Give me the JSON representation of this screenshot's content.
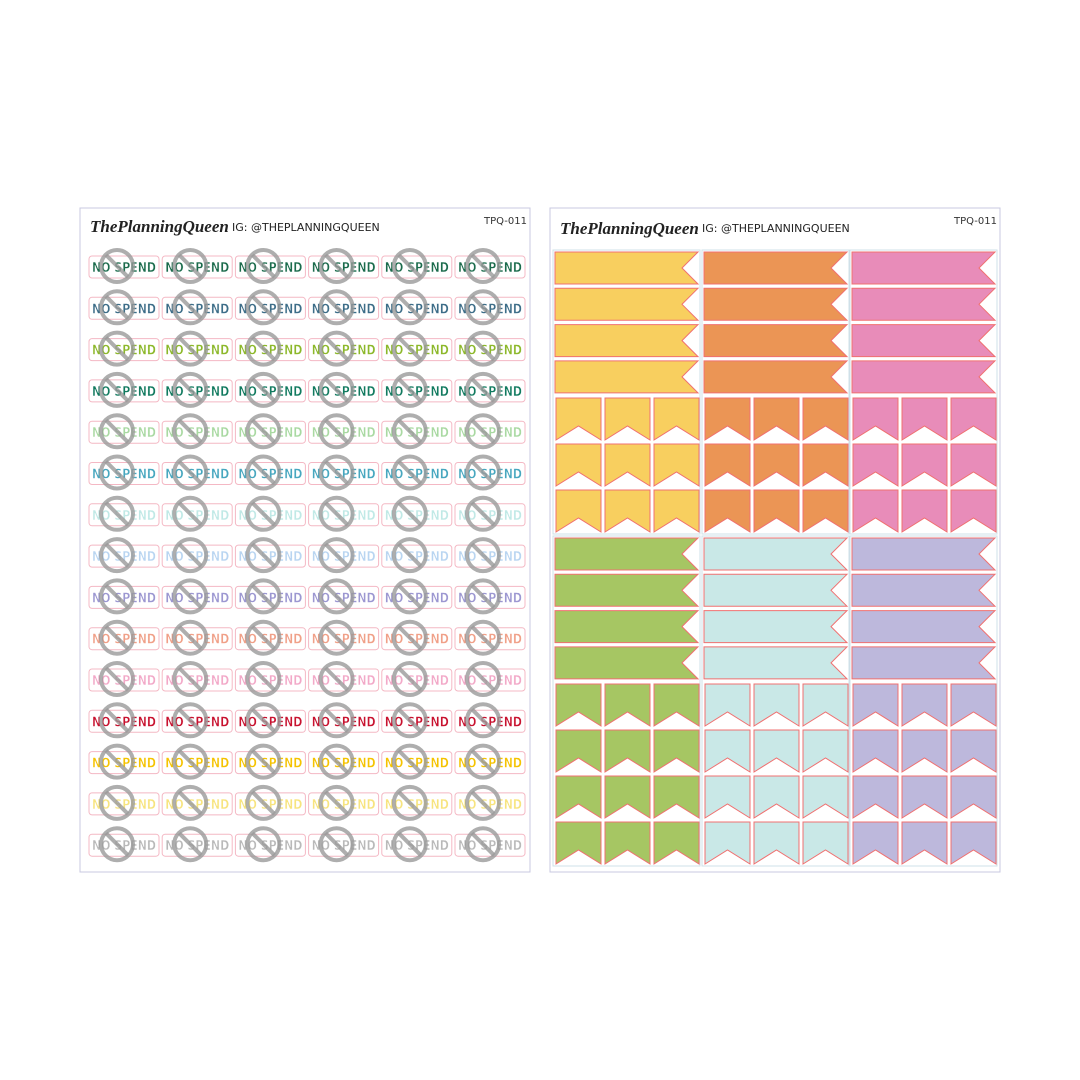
{
  "sheet_1": {
    "brand": "ThePlanningQueen",
    "instagram": "IG: @THEPLANNINGQUEEN",
    "code": "TPQ-011",
    "sticker_text": "NO SPEND",
    "row_colors": [
      "#1b6b4c",
      "#3d6d88",
      "#8cb82a",
      "#117a5f",
      "#a9d9a2",
      "#47a7bf",
      "#c0e9e6",
      "#b9d5f1",
      "#9c97d1",
      "#f0a088",
      "#f2a9c8",
      "#c8122f",
      "#f5c300",
      "#f7e47e",
      "#b9b9b9"
    ]
  },
  "sheet_2": {
    "brand": "ThePlanningQueen",
    "instagram": "IG: @THEPLANNINGQUEEN",
    "code": "TPQ-011",
    "panel_colors": [
      [
        "#f8cf5f",
        "#eb9555",
        "#e88cb9"
      ],
      [
        "#a6c663",
        "#c9e8e7",
        "#bdb8dc"
      ]
    ]
  }
}
